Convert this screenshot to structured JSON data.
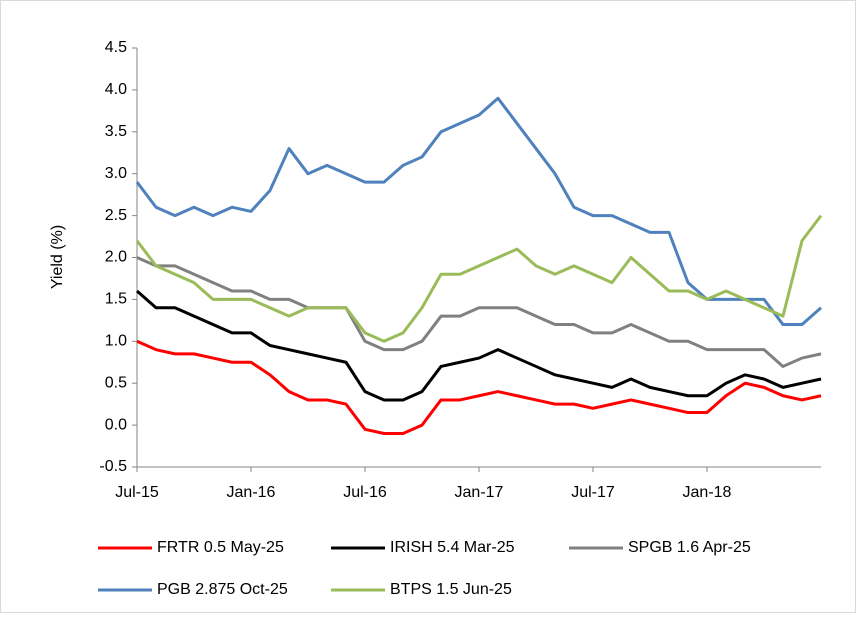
{
  "chart_data": {
    "type": "line",
    "y_label": "Yield (%)",
    "categories": [
      "Jul-15",
      null,
      null,
      null,
      null,
      null,
      "Jan-16",
      null,
      null,
      null,
      null,
      null,
      "Jul-16",
      null,
      null,
      null,
      null,
      null,
      "Jan-17",
      null,
      null,
      null,
      null,
      null,
      "Jul-17",
      null,
      null,
      null,
      null,
      null,
      "Jan-18",
      null,
      null,
      null,
      null,
      null,
      null
    ],
    "ylim": [
      -0.5,
      4.5
    ],
    "yticks": [
      -0.5,
      {
        "value": 0,
        "label": "0.0"
      },
      0.5,
      {
        "value": 1,
        "label": "1.0"
      },
      1.5,
      {
        "value": 2,
        "label": "2.0"
      },
      2.5,
      {
        "value": 3,
        "label": "3.0"
      },
      3.5,
      {
        "value": 4,
        "label": "4.0"
      },
      4.5
    ],
    "grid": false,
    "legend": "bottom",
    "series": [
      {
        "name": "FRTR 0.5 May-25",
        "color": "#ff0000",
        "values": [
          1.0,
          0.9,
          0.85,
          0.85,
          0.8,
          0.75,
          0.75,
          0.6,
          0.4,
          0.3,
          0.3,
          0.25,
          -0.05,
          -0.1,
          -0.1,
          0.0,
          0.3,
          0.3,
          0.35,
          0.4,
          0.35,
          0.3,
          0.25,
          0.25,
          0.2,
          0.25,
          0.3,
          0.25,
          0.2,
          0.15,
          0.15,
          0.35,
          0.5,
          0.45,
          0.35,
          0.3,
          0.35
        ]
      },
      {
        "name": "IRISH 5.4 Mar-25",
        "color": "#000000",
        "values": [
          1.6,
          1.4,
          1.4,
          1.3,
          1.2,
          1.1,
          1.1,
          0.95,
          0.9,
          0.85,
          0.8,
          0.75,
          0.4,
          0.3,
          0.3,
          0.4,
          0.7,
          0.75,
          0.8,
          0.9,
          0.8,
          0.7,
          0.6,
          0.55,
          0.5,
          0.45,
          0.55,
          0.45,
          0.4,
          0.35,
          0.35,
          0.5,
          0.6,
          0.55,
          0.45,
          0.5,
          0.55
        ]
      },
      {
        "name": "SPGB 1.6 Apr-25",
        "color": "#808080",
        "values": [
          2.0,
          1.9,
          1.9,
          1.8,
          1.7,
          1.6,
          1.6,
          1.5,
          1.5,
          1.4,
          1.4,
          1.4,
          1.0,
          0.9,
          0.9,
          1.0,
          1.3,
          1.3,
          1.4,
          1.4,
          1.4,
          1.3,
          1.2,
          1.2,
          1.1,
          1.1,
          1.2,
          1.1,
          1.0,
          1.0,
          0.9,
          0.9,
          0.9,
          0.9,
          0.7,
          0.8,
          0.85
        ]
      },
      {
        "name": "PGB 2.875 Oct-25",
        "color": "#4f81bd",
        "values": [
          2.9,
          2.6,
          2.5,
          2.6,
          2.5,
          2.6,
          2.55,
          2.8,
          3.3,
          3.0,
          3.1,
          3.0,
          2.9,
          2.9,
          3.1,
          3.2,
          3.5,
          3.6,
          3.7,
          3.9,
          3.6,
          3.3,
          3.0,
          2.6,
          2.5,
          2.5,
          2.4,
          2.3,
          2.3,
          1.7,
          1.5,
          1.5,
          1.5,
          1.5,
          1.2,
          1.2,
          1.4
        ]
      },
      {
        "name": "BTPS 1.5 Jun-25",
        "color": "#9bbb59",
        "values": [
          2.2,
          1.9,
          1.8,
          1.7,
          1.5,
          1.5,
          1.5,
          1.4,
          1.3,
          1.4,
          1.4,
          1.4,
          1.1,
          1.0,
          1.1,
          1.4,
          1.8,
          1.8,
          1.9,
          2.0,
          2.1,
          1.9,
          1.8,
          1.9,
          1.8,
          1.7,
          2.0,
          1.8,
          1.6,
          1.6,
          1.5,
          1.6,
          1.5,
          1.4,
          1.3,
          2.2,
          2.5
        ]
      }
    ]
  }
}
